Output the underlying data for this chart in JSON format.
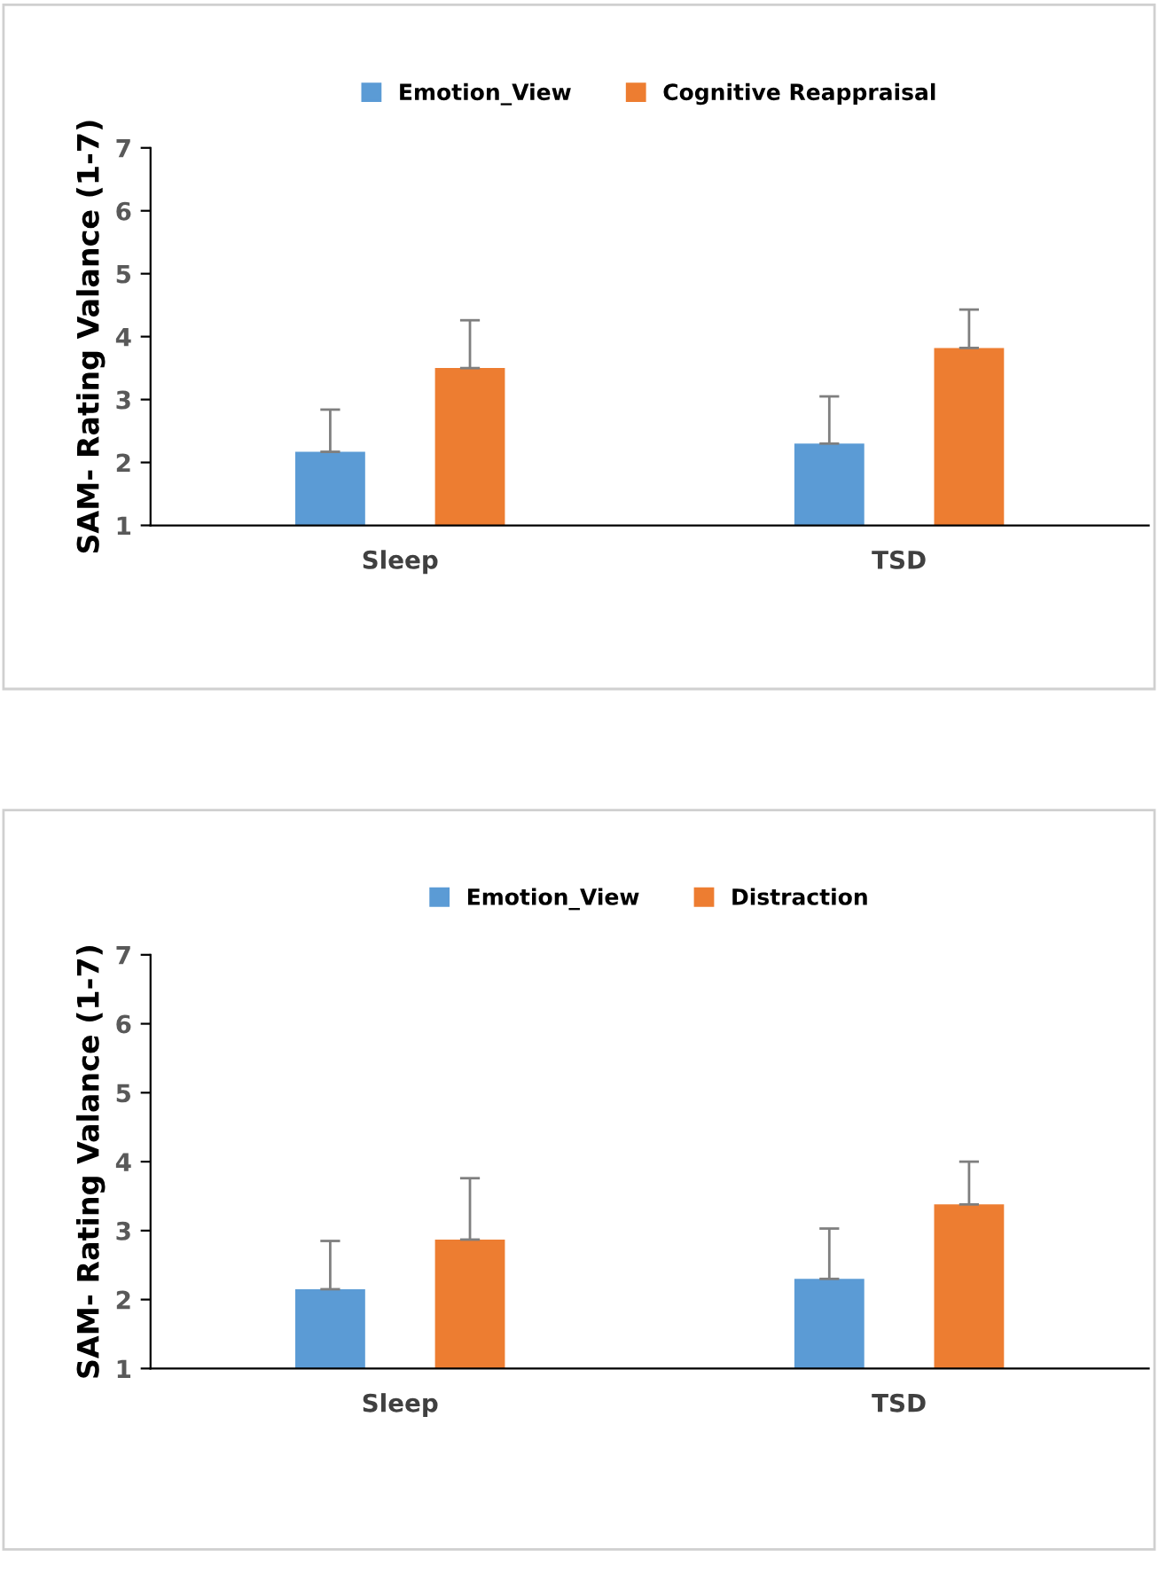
{
  "chart_data": [
    {
      "type": "bar",
      "categories": [
        "Sleep",
        "TSD"
      ],
      "ylabel": "SAM- Rating Valance (1-7)",
      "ylim": [
        1,
        7
      ],
      "yticks": [
        1,
        2,
        3,
        4,
        5,
        6,
        7
      ],
      "legend": "top",
      "grid": false,
      "series": [
        {
          "name": "Emotion_View",
          "color": "#5b9bd5",
          "values": [
            2.17,
            2.3
          ],
          "errors": [
            [
              2.17,
              2.84
            ],
            [
              2.3,
              3.05
            ]
          ]
        },
        {
          "name": "Cognitive Reappraisal",
          "color": "#ed7d31",
          "values": [
            3.5,
            3.82
          ],
          "errors": [
            [
              3.5,
              4.26
            ],
            [
              3.82,
              4.43
            ]
          ]
        }
      ]
    },
    {
      "type": "bar",
      "categories": [
        "Sleep",
        "TSD"
      ],
      "ylabel": "SAM- Rating Valance (1-7)",
      "ylim": [
        1,
        7
      ],
      "yticks": [
        1,
        2,
        3,
        4,
        5,
        6,
        7
      ],
      "legend": "top",
      "grid": false,
      "series": [
        {
          "name": "Emotion_View",
          "color": "#5b9bd5",
          "values": [
            2.15,
            2.3
          ],
          "errors": [
            [
              2.15,
              2.85
            ],
            [
              2.3,
              3.03
            ]
          ]
        },
        {
          "name": "Distraction",
          "color": "#ed7d31",
          "values": [
            2.87,
            3.38
          ],
          "errors": [
            [
              2.87,
              3.76
            ],
            [
              3.38,
              4.0
            ]
          ]
        }
      ]
    }
  ]
}
